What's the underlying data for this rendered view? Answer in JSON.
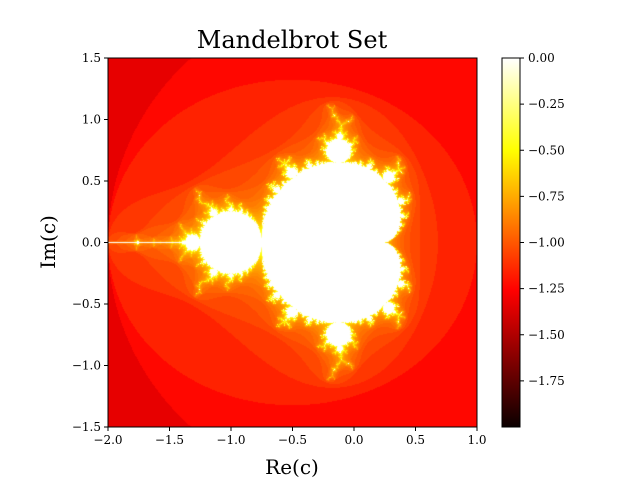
{
  "chart_data": {
    "type": "heatmap",
    "title": "Mandelbrot Set",
    "xlabel": "Re(c)",
    "ylabel": "Im(c)",
    "xlim": [
      -2.0,
      1.0
    ],
    "ylim": [
      -1.5,
      1.5
    ],
    "xticks": [
      -2.0,
      -1.5,
      -1.0,
      -0.5,
      0.0,
      0.5,
      1.0
    ],
    "xtick_labels": [
      "−2.0",
      "−1.5",
      "−1.0",
      "−0.5",
      "0.0",
      "0.5",
      "1.0"
    ],
    "yticks": [
      1.5,
      1.0,
      0.5,
      0.0,
      -0.5,
      -1.0,
      -1.5
    ],
    "ytick_labels": [
      "1.5",
      "1.0",
      "0.5",
      "0.0",
      "−0.5",
      "−1.0",
      "−1.5"
    ],
    "colormap": "hot",
    "colorbar": {
      "range": [
        -2.0,
        0.0
      ],
      "ticks": [
        0.0,
        -0.25,
        -0.5,
        -0.75,
        -1.0,
        -1.25,
        -1.5,
        -1.75
      ],
      "tick_labels": [
        "0.00",
        "−0.25",
        "−0.50",
        "−0.75",
        "−1.00",
        "−1.25",
        "−1.50",
        "−1.75"
      ]
    },
    "set_color": "#ffffff",
    "grid": false
  }
}
